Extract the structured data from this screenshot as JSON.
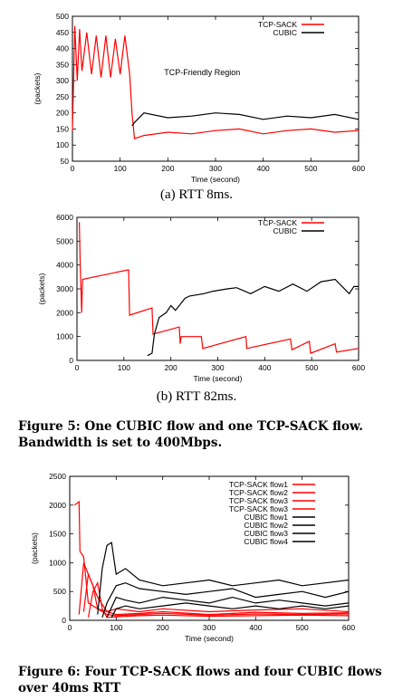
{
  "chart_data": [
    {
      "type": "line",
      "ylabel": "(packets)",
      "xlabel": "Time (second)",
      "xlim": [
        0,
        600
      ],
      "ylim": [
        50,
        500
      ],
      "xticks": [
        0,
        100,
        200,
        300,
        400,
        500,
        600
      ],
      "yticks": [
        50,
        100,
        150,
        200,
        250,
        300,
        350,
        400,
        450,
        500
      ],
      "legend_position": "top-right",
      "annotation": {
        "text": "TCP-Friendly Region",
        "x": 310,
        "y": 300
      },
      "caption": "(a) RTT 8ms.",
      "series": [
        {
          "name": "TCP-SACK",
          "color": "#ff0000",
          "x": [
            0,
            5,
            10,
            15,
            20,
            30,
            40,
            50,
            60,
            70,
            80,
            90,
            100,
            110,
            120,
            125,
            130,
            150,
            200,
            250,
            300,
            350,
            400,
            450,
            500,
            550,
            600
          ],
          "y": [
            145,
            470,
            300,
            460,
            330,
            450,
            320,
            440,
            310,
            440,
            310,
            430,
            320,
            440,
            320,
            200,
            120,
            130,
            140,
            135,
            145,
            150,
            135,
            145,
            150,
            140,
            145
          ]
        },
        {
          "name": "CUBIC",
          "color": "#000000",
          "x": [
            125,
            130,
            150,
            200,
            250,
            300,
            350,
            400,
            450,
            500,
            550,
            600
          ],
          "y": [
            160,
            170,
            200,
            185,
            190,
            200,
            195,
            180,
            190,
            185,
            195,
            180
          ]
        }
      ]
    },
    {
      "type": "line",
      "ylabel": "(packets)",
      "xlabel": "Time (second)",
      "xlim": [
        0,
        600
      ],
      "ylim": [
        0,
        6000
      ],
      "xticks": [
        0,
        100,
        200,
        300,
        400,
        500,
        600
      ],
      "yticks": [
        0,
        1000,
        2000,
        3000,
        4000,
        5000,
        6000
      ],
      "legend_position": "top-right",
      "caption": "(b) RTT 82ms.",
      "series": [
        {
          "name": "TCP-SACK",
          "color": "#ff0000",
          "x": [
            5,
            7,
            10,
            12,
            110,
            112,
            160,
            162,
            218,
            220,
            222,
            265,
            268,
            360,
            362,
            455,
            458,
            495,
            498,
            550,
            553,
            600
          ],
          "y": [
            5800,
            4000,
            2000,
            3400,
            3800,
            1900,
            2200,
            1100,
            1400,
            700,
            1000,
            1000,
            500,
            1000,
            500,
            900,
            450,
            800,
            300,
            700,
            350,
            500
          ]
        },
        {
          "name": "CUBIC",
          "color": "#000000",
          "x": [
            150,
            160,
            165,
            175,
            190,
            200,
            210,
            230,
            240,
            270,
            290,
            320,
            340,
            370,
            400,
            430,
            460,
            490,
            520,
            550,
            580,
            590,
            600
          ],
          "y": [
            200,
            300,
            1100,
            1800,
            2000,
            2300,
            2100,
            2600,
            2700,
            2800,
            2900,
            3000,
            3050,
            2800,
            3100,
            2900,
            3200,
            2900,
            3300,
            3400,
            2800,
            3100,
            3100
          ]
        }
      ]
    },
    {
      "type": "line",
      "ylabel": "(packets)",
      "xlabel": "Time (second)",
      "xlim": [
        0,
        600
      ],
      "ylim": [
        0,
        2500
      ],
      "xticks": [
        0,
        100,
        200,
        300,
        400,
        500,
        600
      ],
      "yticks": [
        0,
        500,
        1000,
        1500,
        2000,
        2500
      ],
      "legend_position": "top-right",
      "series": [
        {
          "name": "TCP-SACK flow1",
          "color": "#ff0000",
          "x": [
            10,
            20,
            22,
            30,
            40,
            60,
            80,
            100,
            150,
            200,
            300,
            400,
            500,
            600
          ],
          "y": [
            2000,
            2060,
            1200,
            1100,
            300,
            200,
            150,
            200,
            150,
            200,
            150,
            180,
            200,
            150
          ]
        },
        {
          "name": "TCP-SACK flow2",
          "color": "#ff0000",
          "x": [
            20,
            30,
            40,
            60,
            80,
            100,
            150,
            200,
            300,
            400,
            500,
            600
          ],
          "y": [
            100,
            1000,
            800,
            400,
            150,
            100,
            120,
            150,
            100,
            140,
            120,
            130
          ]
        },
        {
          "name": "TCP-SACK flow3",
          "color": "#ff0000",
          "x": [
            30,
            40,
            50,
            60,
            80,
            100,
            150,
            200,
            300,
            400,
            500,
            600
          ],
          "y": [
            150,
            800,
            600,
            200,
            100,
            80,
            100,
            120,
            90,
            110,
            100,
            110
          ]
        },
        {
          "name": "TCP-SACK flow3",
          "color": "#ff0000",
          "x": [
            40,
            50,
            60,
            70,
            80,
            100,
            150,
            200,
            300,
            400,
            500,
            600
          ],
          "y": [
            50,
            500,
            650,
            200,
            50,
            60,
            80,
            90,
            70,
            80,
            90,
            80
          ]
        },
        {
          "name": "CUBIC flow1",
          "color": "#000000",
          "x": [
            60,
            70,
            80,
            90,
            100,
            120,
            150,
            200,
            250,
            300,
            350,
            400,
            450,
            500,
            550,
            600
          ],
          "y": [
            100,
            900,
            1300,
            1350,
            800,
            900,
            700,
            600,
            650,
            700,
            600,
            650,
            700,
            600,
            650,
            700
          ]
        },
        {
          "name": "CUBIC flow2",
          "color": "#000000",
          "x": [
            70,
            80,
            100,
            120,
            150,
            200,
            250,
            300,
            350,
            400,
            450,
            500,
            550,
            600
          ],
          "y": [
            50,
            300,
            600,
            650,
            550,
            500,
            450,
            500,
            550,
            400,
            450,
            500,
            400,
            500
          ]
        },
        {
          "name": "CUBIC flow3",
          "color": "#000000",
          "x": [
            80,
            100,
            120,
            150,
            200,
            250,
            300,
            350,
            400,
            450,
            500,
            550,
            600
          ],
          "y": [
            50,
            400,
            350,
            300,
            400,
            350,
            300,
            400,
            300,
            350,
            300,
            250,
            300
          ]
        },
        {
          "name": "CUBIC flow4",
          "color": "#000000",
          "x": [
            90,
            100,
            120,
            150,
            200,
            250,
            300,
            350,
            400,
            450,
            500,
            550,
            600
          ],
          "y": [
            50,
            200,
            250,
            200,
            250,
            300,
            250,
            200,
            250,
            200,
            250,
            200,
            250
          ]
        }
      ]
    }
  ],
  "captions": {
    "fig5": "Figure 5:  One CUBIC flow and one TCP-SACK flow. Bandwidth is set to 400Mbps.",
    "fig6": "Figure 6:  Four TCP-SACK flows and four CUBIC flows over 40ms RTT"
  }
}
